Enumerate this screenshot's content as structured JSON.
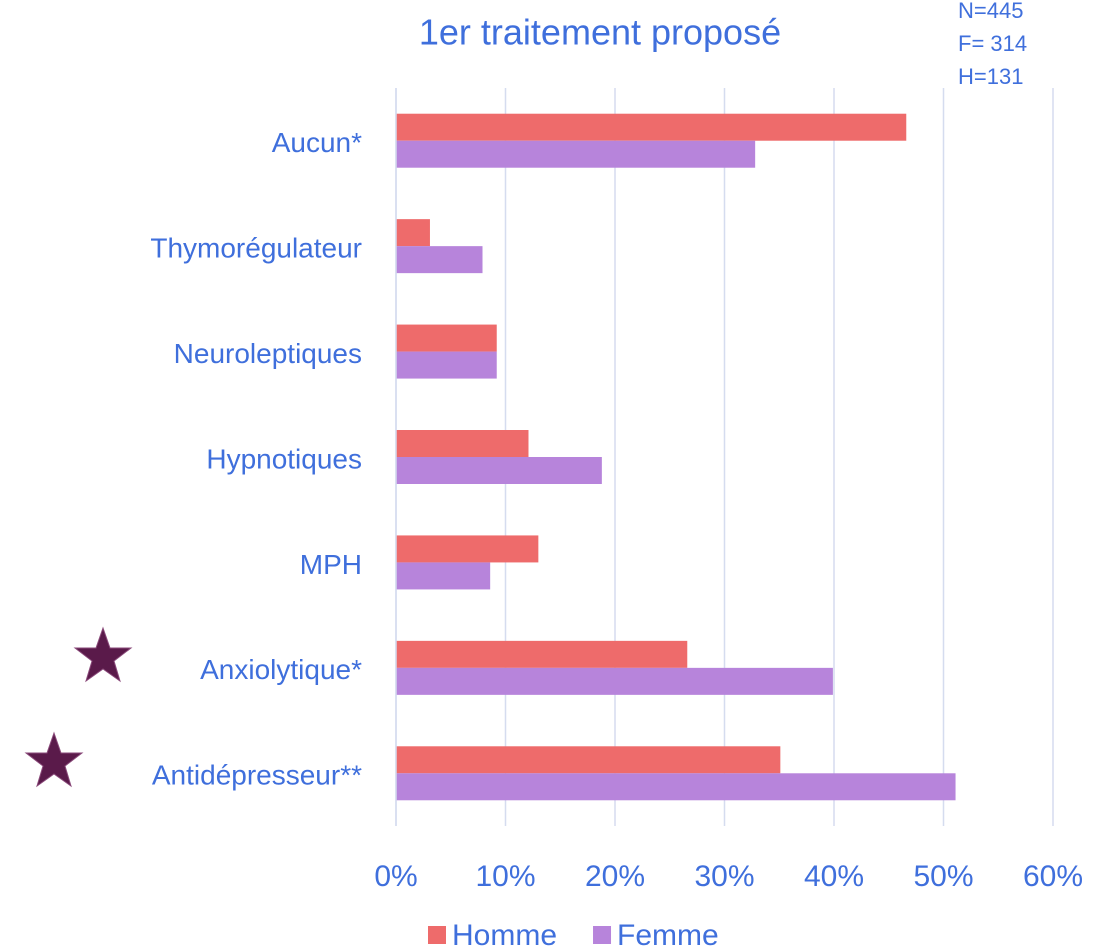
{
  "chart_data": {
    "type": "barh",
    "title": "1er traitement proposé",
    "annotations": [
      "N=445",
      "F= 314",
      "H=131"
    ],
    "categories": [
      "Aucun*",
      "Thymorégulateur",
      "Neuroleptiques",
      "Hypnotiques",
      "MPH",
      "Anxiolytique*",
      "Antidépresseur**"
    ],
    "series": [
      {
        "name": "Homme",
        "color": "#ee6b6b",
        "values": [
          46.6,
          3.1,
          9.2,
          12.1,
          13.0,
          26.6,
          35.1
        ]
      },
      {
        "name": "Femme",
        "color": "#b784db",
        "values": [
          32.8,
          7.9,
          9.2,
          18.8,
          8.6,
          39.9,
          51.1
        ]
      }
    ],
    "xlim": [
      0,
      60
    ],
    "xticks": [
      {
        "value": 0,
        "label": "0%"
      },
      {
        "value": 10,
        "label": "10%"
      },
      {
        "value": 20,
        "label": "20%"
      },
      {
        "value": 30,
        "label": "30%"
      },
      {
        "value": 40,
        "label": "40%"
      },
      {
        "value": 50,
        "label": "50%"
      },
      {
        "value": 60,
        "label": "60%"
      }
    ],
    "grid": true,
    "legend": "bottom"
  }
}
